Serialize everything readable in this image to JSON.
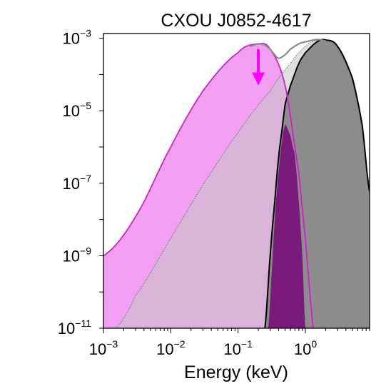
{
  "chart_data": {
    "type": "area",
    "title": "CXOU J0852-4617",
    "xlabel": "Energy (keV)",
    "ylabel": "",
    "x_scale": "log",
    "y_scale": "log",
    "xlim": [
      0.001,
      9.0
    ],
    "ylim": [
      1e-11,
      0.00135
    ],
    "x_ticks": [
      {
        "value": 0.001,
        "base": "10",
        "exp": "−3"
      },
      {
        "value": 0.01,
        "base": "10",
        "exp": "−2"
      },
      {
        "value": 0.1,
        "base": "10",
        "exp": "−1"
      },
      {
        "value": 1,
        "base": "10",
        "exp": "0"
      }
    ],
    "y_ticks": [
      {
        "value": 1e-11,
        "base": "10",
        "exp": "−11"
      },
      {
        "value": 1e-09,
        "base": "10",
        "exp": "−9"
      },
      {
        "value": 1e-07,
        "base": "10",
        "exp": "−7"
      },
      {
        "value": 1e-05,
        "base": "10",
        "exp": "−5"
      },
      {
        "value": 0.001,
        "base": "10",
        "exp": "−3"
      }
    ],
    "grid": false,
    "legend": "none",
    "series": [
      {
        "kind": "magenta-thermal",
        "x": [
          0.001,
          0.003,
          0.01,
          0.03,
          0.1,
          0.2,
          0.3,
          0.5,
          0.8,
          1.0,
          1.2,
          1.5
        ],
        "y": [
          1e-09,
          1.2e-08,
          1e-06,
          3.5e-05,
          0.0004,
          0.0007,
          0.0005,
          5e-05,
          2e-07,
          3e-09,
          5e-11,
          1e-12
        ]
      },
      {
        "kind": "gray-thermal",
        "x": [
          0.0015,
          0.003,
          0.01,
          0.03,
          0.1,
          0.3,
          0.6,
          1.0,
          1.6,
          2.5,
          4,
          6,
          9
        ],
        "y": [
          1e-11,
          8e-11,
          3e-09,
          9e-08,
          2.5e-06,
          3.5e-05,
          0.0002,
          0.0006,
          0.0009,
          0.0007,
          0.0002,
          1.5e-05,
          1e-07
        ]
      },
      {
        "kind": "total-model",
        "x": [
          0.15,
          0.2,
          0.25,
          0.3,
          0.35,
          0.4,
          0.5,
          0.6,
          0.8,
          1.0,
          1.5,
          2.0
        ],
        "y": [
          0.0006,
          0.0007,
          0.00065,
          0.0005,
          0.00035,
          0.00028,
          0.00035,
          0.0005,
          0.0007,
          0.0008,
          0.00092,
          0.00085
        ]
      },
      {
        "kind": "observed-gray",
        "x": [
          0.25,
          0.3,
          0.35,
          0.4,
          0.45,
          0.5,
          0.6,
          0.8,
          1.0,
          1.5,
          2.0,
          3,
          5,
          7,
          9
        ],
        "y": [
          1e-11,
          1e-09,
          3e-08,
          5e-07,
          3e-06,
          1.5e-05,
          5e-05,
          0.0002,
          0.0004,
          0.0008,
          0.0009,
          0.0006,
          8e-05,
          4e-06,
          6e-08
        ]
      },
      {
        "kind": "observed-magenta",
        "x": [
          0.28,
          0.32,
          0.36,
          0.4,
          0.45,
          0.5,
          0.55,
          0.6,
          0.65,
          0.7,
          0.8,
          0.9,
          1.0
        ],
        "y": [
          1e-11,
          5e-10,
          2e-08,
          2e-07,
          1.5e-06,
          4e-06,
          3e-06,
          2e-06,
          1e-06,
          5e-07,
          3e-08,
          1e-09,
          1e-11
        ]
      }
    ],
    "upper_limit_arrow": {
      "x": 0.2,
      "y_top": 0.0005,
      "y_bottom": 6e-05
    },
    "colors": {
      "magenta": "#ff66ff",
      "magenta_line": "#cc22cc",
      "gray_fill": "#d4d4d4",
      "gray_dark": "#8c8c8c",
      "purple": "#7a1a7a",
      "arrow": "#ff00ff"
    }
  }
}
